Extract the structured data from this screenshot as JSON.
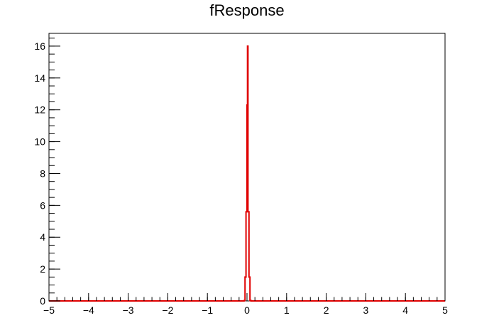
{
  "chart_data": {
    "type": "histogram",
    "title": "fResponse",
    "xlabel": "",
    "ylabel": "",
    "xlim": [
      -5,
      5
    ],
    "ylim": [
      0,
      16.8
    ],
    "grid": false,
    "legend": "none",
    "x_ticks": [
      -5,
      -4,
      -3,
      -2,
      -1,
      0,
      1,
      2,
      3,
      4,
      5
    ],
    "x_tick_labels": [
      "−5",
      "−4",
      "−3",
      "−2",
      "−1",
      "0",
      "1",
      "2",
      "3",
      "4",
      "5"
    ],
    "y_ticks": [
      0,
      2,
      4,
      6,
      8,
      10,
      12,
      14,
      16
    ],
    "y_tick_labels": [
      "0",
      "2",
      "4",
      "6",
      "8",
      "10",
      "12",
      "14",
      "16"
    ],
    "bin_width": 0.025,
    "bins": [
      {
        "x0": -0.075,
        "x1": -0.05,
        "value": 0.03
      },
      {
        "x0": -0.05,
        "x1": -0.025,
        "value": 1.5
      },
      {
        "x0": -0.025,
        "x1": 0.0,
        "value": 5.6
      },
      {
        "x0": 0.0,
        "x1": 0.0125,
        "value": 12.3
      },
      {
        "x0": 0.0125,
        "x1": 0.025,
        "value": 16.0
      },
      {
        "x0": 0.025,
        "x1": 0.05,
        "value": 5.6
      },
      {
        "x0": 0.05,
        "x1": 0.075,
        "value": 1.5
      },
      {
        "x0": 0.075,
        "x1": 0.1,
        "value": 0.03
      }
    ],
    "line_color": "#e00000",
    "axis_color": "#000000"
  }
}
